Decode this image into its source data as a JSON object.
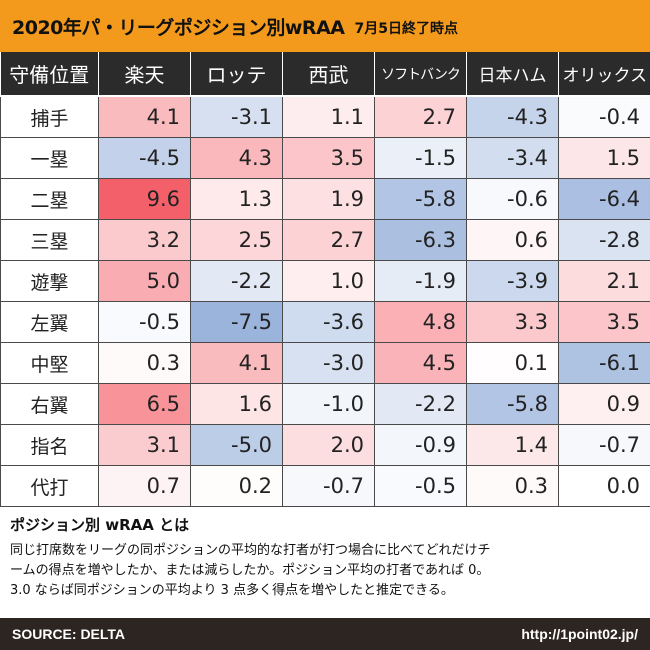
{
  "header": {
    "title": "2020年パ・リーグポジション別wRAA",
    "subtitle": "7月5日終了時点"
  },
  "chart_data": {
    "type": "heatmap",
    "corner_label": "守備位置",
    "columns": [
      "楽天",
      "ロッテ",
      "西武",
      "ソフトバンク",
      "日本ハム",
      "オリックス"
    ],
    "rows": [
      {
        "position": "捕手",
        "values": [
          "4.1",
          "-3.1",
          "1.1",
          "2.7",
          "-4.3",
          "-0.4"
        ]
      },
      {
        "position": "一塁",
        "values": [
          "-4.5",
          "4.3",
          "3.5",
          "-1.5",
          "-3.4",
          "1.5"
        ]
      },
      {
        "position": "二塁",
        "values": [
          "9.6",
          "1.3",
          "1.9",
          "-5.8",
          "-0.6",
          "-6.4"
        ]
      },
      {
        "position": "三塁",
        "values": [
          "3.2",
          "2.5",
          "2.7",
          "-6.3",
          "0.6",
          "-2.8"
        ]
      },
      {
        "position": "遊撃",
        "values": [
          "5.0",
          "-2.2",
          "1.0",
          "-1.9",
          "-3.9",
          "2.1"
        ]
      },
      {
        "position": "左翼",
        "values": [
          "-0.5",
          "-7.5",
          "-3.6",
          "4.8",
          "3.3",
          "3.5"
        ]
      },
      {
        "position": "中堅",
        "values": [
          "0.3",
          "4.1",
          "-3.0",
          "4.5",
          "0.1",
          "-6.1"
        ]
      },
      {
        "position": "右翼",
        "values": [
          "6.5",
          "1.6",
          "-1.0",
          "-2.2",
          "-5.8",
          "0.9"
        ]
      },
      {
        "position": "指名",
        "values": [
          "3.1",
          "-5.0",
          "2.0",
          "-0.9",
          "1.4",
          "-0.7"
        ]
      },
      {
        "position": "代打",
        "values": [
          "0.7",
          "0.2",
          "-0.7",
          "-0.5",
          "0.3",
          "0.0"
        ]
      }
    ],
    "color_scale": {
      "positive": "#f4606a",
      "negative": "#7f9fd2",
      "neutral": "#ffffff"
    }
  },
  "description": {
    "title": "ポジション別 wRAA とは",
    "lines": [
      "同じ打席数をリーグの同ポジションの平均的な打者が打つ場合に比べてどれだけチ",
      "ームの得点を増やしたか、または減らしたか。ポジション平均の打者であれば 0。",
      "3.0 ならば同ポジションの平均より 3 点多く得点を増やしたと推定できる。"
    ]
  },
  "footer": {
    "source": "SOURCE: DELTA",
    "url": "http://1point02.jp/"
  }
}
